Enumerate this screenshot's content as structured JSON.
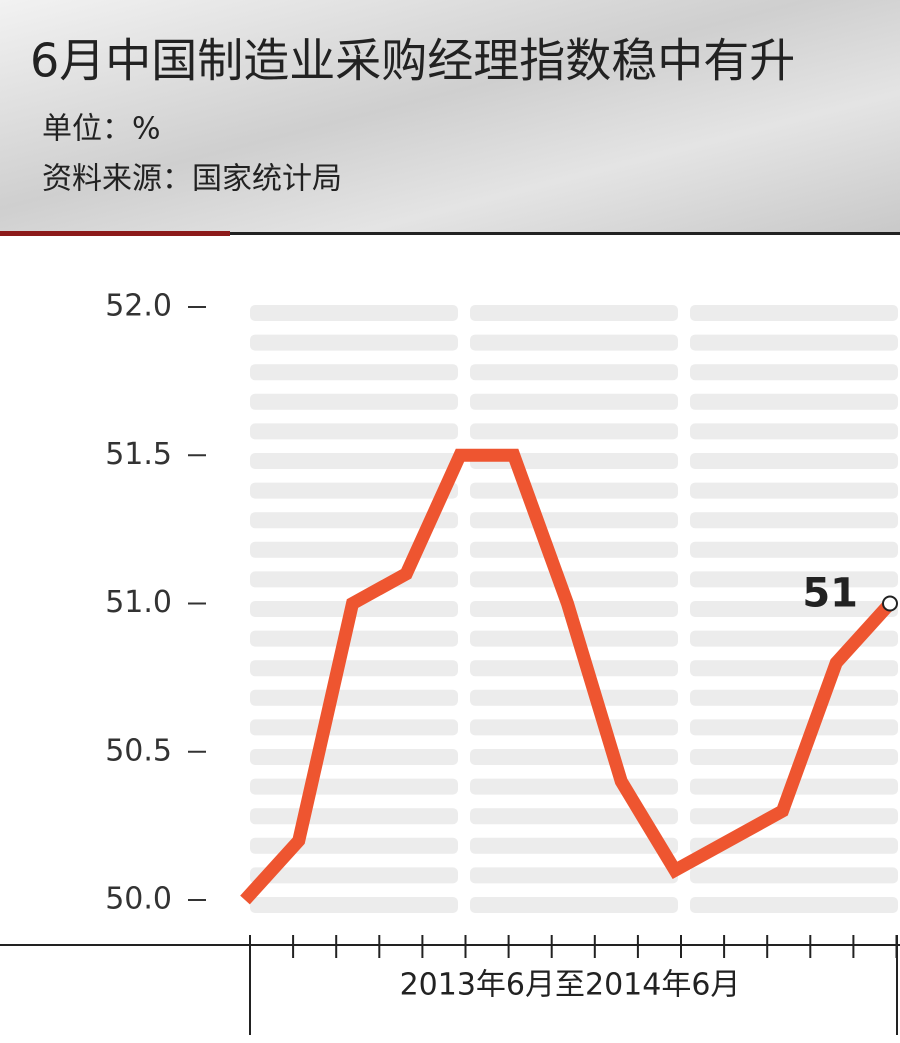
{
  "chart_data": {
    "type": "line",
    "title": "6月中国制造业采购经理指数稳中有升",
    "subtitle": "单位：%",
    "source": "资料来源：国家统计局",
    "x_label": "2013年6月至2014年6月",
    "categories": [
      null,
      null,
      null,
      null,
      null,
      null,
      null,
      null,
      null,
      null,
      null,
      null,
      null
    ],
    "values": [
      50.0,
      50.2,
      51.0,
      51.1,
      51.5,
      51.5,
      51.0,
      50.4,
      50.1,
      50.2,
      50.3,
      50.8,
      51.0
    ],
    "value_labels": [
      null,
      null,
      null,
      null,
      null,
      null,
      null,
      null,
      null,
      null,
      null,
      null,
      "51"
    ],
    "color": "#ee5530",
    "ylim": [
      50,
      52
    ],
    "yticks": [
      {
        "value": 50,
        "label": "50.0"
      },
      {
        "value": 50.5,
        "label": "50.5"
      },
      {
        "value": 51,
        "label": "51.0"
      },
      {
        "value": 51.5,
        "label": "51.5"
      },
      {
        "value": 52,
        "label": "52.0"
      }
    ]
  }
}
